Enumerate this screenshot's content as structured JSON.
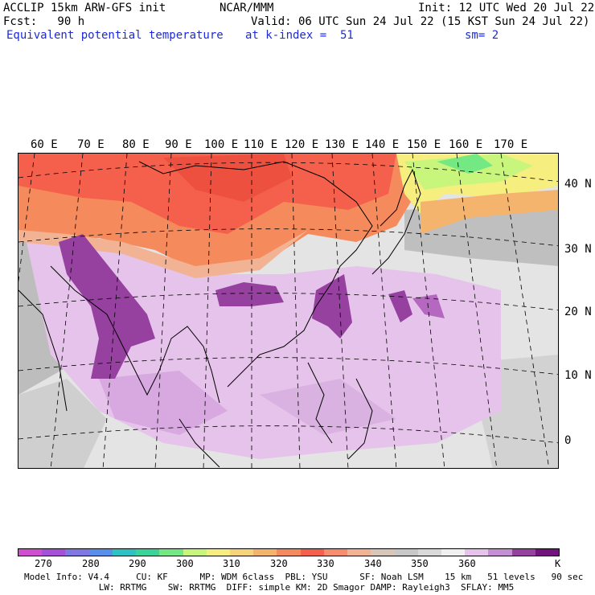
{
  "header": {
    "model_line": "ACCLIP 15km ARW-GFS init",
    "center": "NCAR/MMM",
    "init": "Init: 12 UTC Wed 20 Jul 22",
    "fcst": "Fcst:   90 h",
    "valid": "Valid: 06 UTC Sun 24 Jul 22 (15 KST Sun 24 Jul 22)",
    "field": "Equivalent potential temperature",
    "level": "at k-index =  51",
    "smooth": "sm= 2"
  },
  "map": {
    "lon_labels": [
      "60 E",
      "70 E",
      "80 E",
      "90 E",
      "100 E",
      "110 E",
      "120 E",
      "130 E",
      "140 E",
      "150 E",
      "160 E",
      "170 E"
    ],
    "lat_labels": [
      "40 N",
      "30 N",
      "20 N",
      "10 N",
      "0"
    ]
  },
  "colorbar": {
    "colors": [
      "#d04fd0",
      "#a64fd8",
      "#7f78e4",
      "#5690ea",
      "#2ec2c2",
      "#3ad39a",
      "#74e882",
      "#c8f67c",
      "#f6ef80",
      "#f6d47a",
      "#f5b46e",
      "#f58a5c",
      "#f5604c",
      "#f78d6f",
      "#f2b395",
      "#d8c6b8",
      "#c8c8c8",
      "#dadada",
      "#f0f0f0",
      "#e6c3ea",
      "#c68fd4",
      "#96409f",
      "#72127e"
    ],
    "labels": [
      "270",
      "280",
      "290",
      "300",
      "310",
      "320",
      "330",
      "340",
      "350",
      "360"
    ],
    "unit": "K"
  },
  "footer": {
    "line1": "Model Info: V4.4     CU: KF      MP: WDM 6class  PBL: YSU      SF: Noah LSM    15 km   51 levels   90 sec",
    "line2": "              LW: RRTMG    SW: RRTMG  DIFF: simple KM: 2D Smagor DAMP: Rayleigh3  SFLAY: MM5"
  }
}
